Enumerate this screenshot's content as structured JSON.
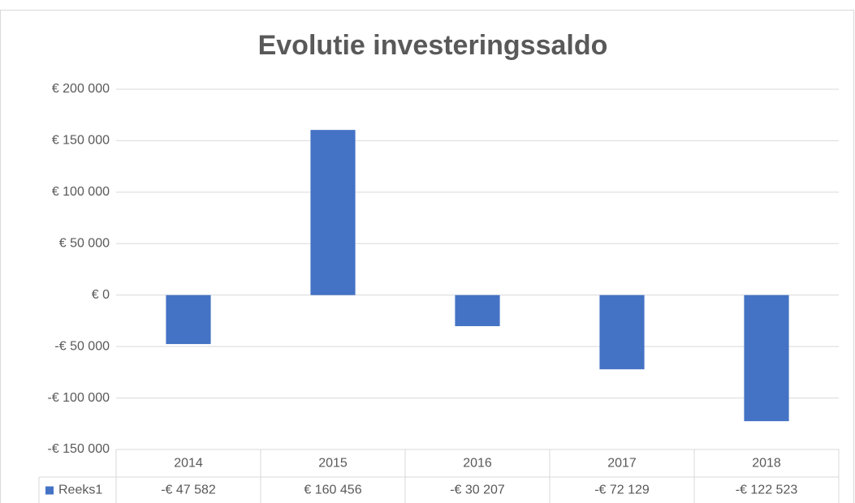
{
  "chart_data": {
    "type": "bar",
    "title": "Evolutie investeringssaldo",
    "categories": [
      "2014",
      "2015",
      "2016",
      "2017",
      "2018"
    ],
    "series": [
      {
        "name": "Reeks1",
        "color": "#4472c4",
        "values": [
          -47582,
          160456,
          -30207,
          -72129,
          -122523
        ],
        "value_labels": [
          "-€ 47 582",
          "€ 160 456",
          "-€ 30 207",
          "-€ 72 129",
          "-€ 122 523"
        ]
      }
    ],
    "ylim": [
      -150000,
      200000
    ],
    "yticks": [
      {
        "value": -150000,
        "label": "-€ 150 000"
      },
      {
        "value": -100000,
        "label": "-€ 100 000"
      },
      {
        "value": -50000,
        "label": "-€ 50 000"
      },
      {
        "value": 0,
        "label": "€ 0"
      },
      {
        "value": 50000,
        "label": "€ 50 000"
      },
      {
        "value": 100000,
        "label": "€ 100 000"
      },
      {
        "value": 150000,
        "label": "€ 150 000"
      },
      {
        "value": 200000,
        "label": "€ 200 000"
      }
    ],
    "grid": true,
    "data_table": true
  }
}
